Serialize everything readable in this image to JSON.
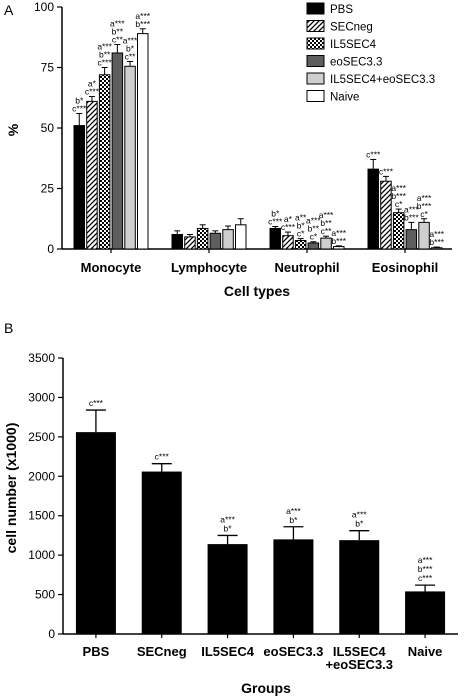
{
  "chart_data": [
    {
      "panel": "A",
      "type": "bar",
      "xlabel": "Cell types",
      "ylabel": "%",
      "ylim": [
        0,
        100
      ],
      "yticks": [
        "0",
        "25",
        "50",
        "75",
        "100"
      ],
      "categories": [
        "Monocyte",
        "Lymphocyte",
        "Neutrophil",
        "Eosinophil"
      ],
      "legend_position": "top-right",
      "series": [
        {
          "name": "PBS",
          "fill": "black",
          "values": [
            51,
            6,
            8.5,
            33
          ],
          "errors": [
            5,
            1.5,
            0.8,
            4
          ],
          "sig": [
            [
              "b*",
              "c***"
            ],
            [],
            [
              "b*",
              "c***"
            ],
            [
              "c***"
            ]
          ]
        },
        {
          "name": "SECneg",
          "fill": "hatch",
          "values": [
            61,
            5,
            5.5,
            28
          ],
          "errors": [
            2,
            1,
            1.5,
            2
          ],
          "sig": [
            [
              "a*",
              "c***"
            ],
            [],
            [
              "a*",
              "c***"
            ],
            [
              "c***"
            ]
          ]
        },
        {
          "name": "IL5SEC4",
          "fill": "checker",
          "values": [
            72,
            8.5,
            3.5,
            15
          ],
          "errors": [
            3,
            1.5,
            0.8,
            1.5
          ],
          "sig": [
            [
              "a***",
              "b**",
              "c***"
            ],
            [],
            [
              "a**",
              "b*",
              "c*"
            ],
            [
              "a***",
              "b***",
              "c*"
            ]
          ]
        },
        {
          "name": "eoSEC3.3",
          "fill": "darkgrey",
          "values": [
            81,
            6.5,
            2.5,
            8
          ],
          "errors": [
            3.5,
            1,
            0.5,
            3
          ],
          "sig": [
            [
              "a***",
              "b**",
              "c**"
            ],
            [],
            [
              "a***",
              "b**",
              "c*"
            ],
            [
              "a***",
              "b***"
            ]
          ]
        },
        {
          "name": "IL5SEC4+eoSEC3.3",
          "fill": "lightgrey",
          "values": [
            75.5,
            8,
            4.5,
            11
          ],
          "errors": [
            2,
            1.5,
            0.8,
            1.5
          ],
          "sig": [
            [
              "a***",
              "b*",
              "c**"
            ],
            [],
            [
              "a***",
              "b**",
              "c**"
            ],
            [
              "a***",
              "b***",
              "c*"
            ]
          ]
        },
        {
          "name": "Naive",
          "fill": "white",
          "values": [
            89,
            10,
            1,
            0.5
          ],
          "errors": [
            2,
            2.5,
            0.3,
            0.3
          ],
          "sig": [
            [
              "a***",
              "b***"
            ],
            [],
            [
              "a***",
              "b***"
            ],
            [
              "a***",
              "b***"
            ]
          ]
        }
      ]
    },
    {
      "panel": "B",
      "type": "bar",
      "xlabel": "Groups",
      "ylabel": "cell number (x1000)",
      "ylim": [
        0,
        3500
      ],
      "yticks": [
        "0",
        "500",
        "1000",
        "1500",
        "2000",
        "2500",
        "3000",
        "3500"
      ],
      "categories": [
        [
          "PBS"
        ],
        [
          "SECneg"
        ],
        [
          "IL5SEC4"
        ],
        [
          "eoSEC3.3"
        ],
        [
          "IL5SEC4",
          "+eoSEC3.3"
        ],
        [
          "Naive"
        ]
      ],
      "values": [
        2560,
        2060,
        1140,
        1200,
        1190,
        540
      ],
      "errors": [
        280,
        100,
        110,
        160,
        120,
        80
      ],
      "sig": [
        [
          "c***"
        ],
        [
          "c***"
        ],
        [
          "a***",
          "b*"
        ],
        [
          "a***",
          "b*"
        ],
        [
          "a***",
          "b*"
        ],
        [
          "a***",
          "b***",
          "c***"
        ]
      ]
    }
  ]
}
